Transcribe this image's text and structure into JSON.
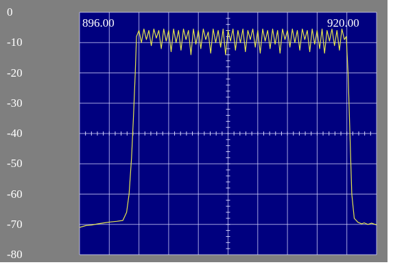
{
  "chart_data": {
    "type": "line",
    "title": "",
    "xlabel": "",
    "ylabel": "",
    "ylim": [
      -80,
      0
    ],
    "y_ticks": [
      "0",
      "-10",
      "-20",
      "-30",
      "-40",
      "-50",
      "-60",
      "-70",
      "-80"
    ],
    "x_range": [
      896.0,
      920.0
    ],
    "freq_start_label": "896.00",
    "freq_stop_label": "920.00",
    "grid": true,
    "colors": {
      "frame": "#7f7f7f",
      "plot_background": "#00007f",
      "grid": "#d8d8ff",
      "trace": "#e6e64d",
      "text": "#ffffff"
    },
    "series": [
      {
        "values": [
          [
            896.0,
            -71.0
          ],
          [
            896.5,
            -70.4
          ],
          [
            897.0,
            -70.2
          ],
          [
            897.5,
            -69.8
          ],
          [
            898.0,
            -69.5
          ],
          [
            898.5,
            -69.2
          ],
          [
            899.0,
            -69.0
          ],
          [
            899.5,
            -68.7
          ],
          [
            899.8,
            -66.0
          ],
          [
            900.0,
            -60.0
          ],
          [
            900.2,
            -48.0
          ],
          [
            900.35,
            -35.0
          ],
          [
            900.5,
            -20.0
          ],
          [
            900.6,
            -8.0
          ],
          [
            900.8,
            -6.0
          ],
          [
            901.0,
            -10.0
          ],
          [
            901.2,
            -5.5
          ],
          [
            901.4,
            -9.0
          ],
          [
            901.6,
            -6.0
          ],
          [
            901.8,
            -11.0
          ],
          [
            902.0,
            -5.5
          ],
          [
            902.2,
            -8.5
          ],
          [
            902.4,
            -6.0
          ],
          [
            902.6,
            -12.0
          ],
          [
            902.8,
            -5.5
          ],
          [
            903.0,
            -9.5
          ],
          [
            903.2,
            -6.0
          ],
          [
            903.4,
            -13.0
          ],
          [
            903.6,
            -5.5
          ],
          [
            903.8,
            -10.0
          ],
          [
            904.0,
            -6.0
          ],
          [
            904.2,
            -12.5
          ],
          [
            904.4,
            -5.5
          ],
          [
            904.6,
            -9.0
          ],
          [
            904.8,
            -6.0
          ],
          [
            905.0,
            -14.0
          ],
          [
            905.2,
            -5.5
          ],
          [
            905.4,
            -10.5
          ],
          [
            905.6,
            -6.0
          ],
          [
            905.8,
            -12.0
          ],
          [
            906.0,
            -5.5
          ],
          [
            906.2,
            -9.0
          ],
          [
            906.4,
            -6.5
          ],
          [
            906.6,
            -13.5
          ],
          [
            906.8,
            -5.5
          ],
          [
            907.0,
            -10.0
          ],
          [
            907.2,
            -6.0
          ],
          [
            907.4,
            -11.5
          ],
          [
            907.6,
            -5.5
          ],
          [
            907.8,
            -14.0
          ],
          [
            908.0,
            -6.0
          ],
          [
            908.2,
            -9.5
          ],
          [
            908.4,
            -5.5
          ],
          [
            908.6,
            -12.5
          ],
          [
            908.8,
            -6.0
          ],
          [
            909.0,
            -10.0
          ],
          [
            909.2,
            -5.5
          ],
          [
            909.4,
            -13.0
          ],
          [
            909.6,
            -6.0
          ],
          [
            909.8,
            -9.0
          ],
          [
            910.0,
            -5.5
          ],
          [
            910.2,
            -11.5
          ],
          [
            910.4,
            -6.0
          ],
          [
            910.6,
            -13.5
          ],
          [
            910.8,
            -5.5
          ],
          [
            911.0,
            -9.5
          ],
          [
            911.2,
            -6.0
          ],
          [
            911.4,
            -12.0
          ],
          [
            911.6,
            -5.5
          ],
          [
            911.8,
            -10.5
          ],
          [
            912.0,
            -6.0
          ],
          [
            912.2,
            -13.5
          ],
          [
            912.4,
            -5.5
          ],
          [
            912.6,
            -9.0
          ],
          [
            912.8,
            -6.0
          ],
          [
            913.0,
            -11.5
          ],
          [
            913.2,
            -5.5
          ],
          [
            913.4,
            -10.0
          ],
          [
            913.6,
            -6.0
          ],
          [
            913.8,
            -12.5
          ],
          [
            914.0,
            -5.5
          ],
          [
            914.2,
            -9.0
          ],
          [
            914.4,
            -6.0
          ],
          [
            914.6,
            -13.0
          ],
          [
            914.8,
            -5.5
          ],
          [
            915.0,
            -10.5
          ],
          [
            915.2,
            -6.0
          ],
          [
            915.4,
            -12.0
          ],
          [
            915.6,
            -5.5
          ],
          [
            915.8,
            -13.5
          ],
          [
            916.0,
            -6.0
          ],
          [
            916.2,
            -9.5
          ],
          [
            916.4,
            -5.5
          ],
          [
            916.6,
            -11.0
          ],
          [
            916.8,
            -6.0
          ],
          [
            917.0,
            -12.5
          ],
          [
            917.2,
            -5.5
          ],
          [
            917.4,
            -9.0
          ],
          [
            917.55,
            -8.0
          ],
          [
            917.7,
            -20.0
          ],
          [
            917.85,
            -40.0
          ],
          [
            918.0,
            -60.0
          ],
          [
            918.2,
            -68.0
          ],
          [
            918.5,
            -69.3
          ],
          [
            918.8,
            -69.8
          ],
          [
            919.0,
            -69.5
          ],
          [
            919.3,
            -70.0
          ],
          [
            919.6,
            -69.6
          ],
          [
            920.0,
            -70.2
          ]
        ]
      }
    ]
  }
}
